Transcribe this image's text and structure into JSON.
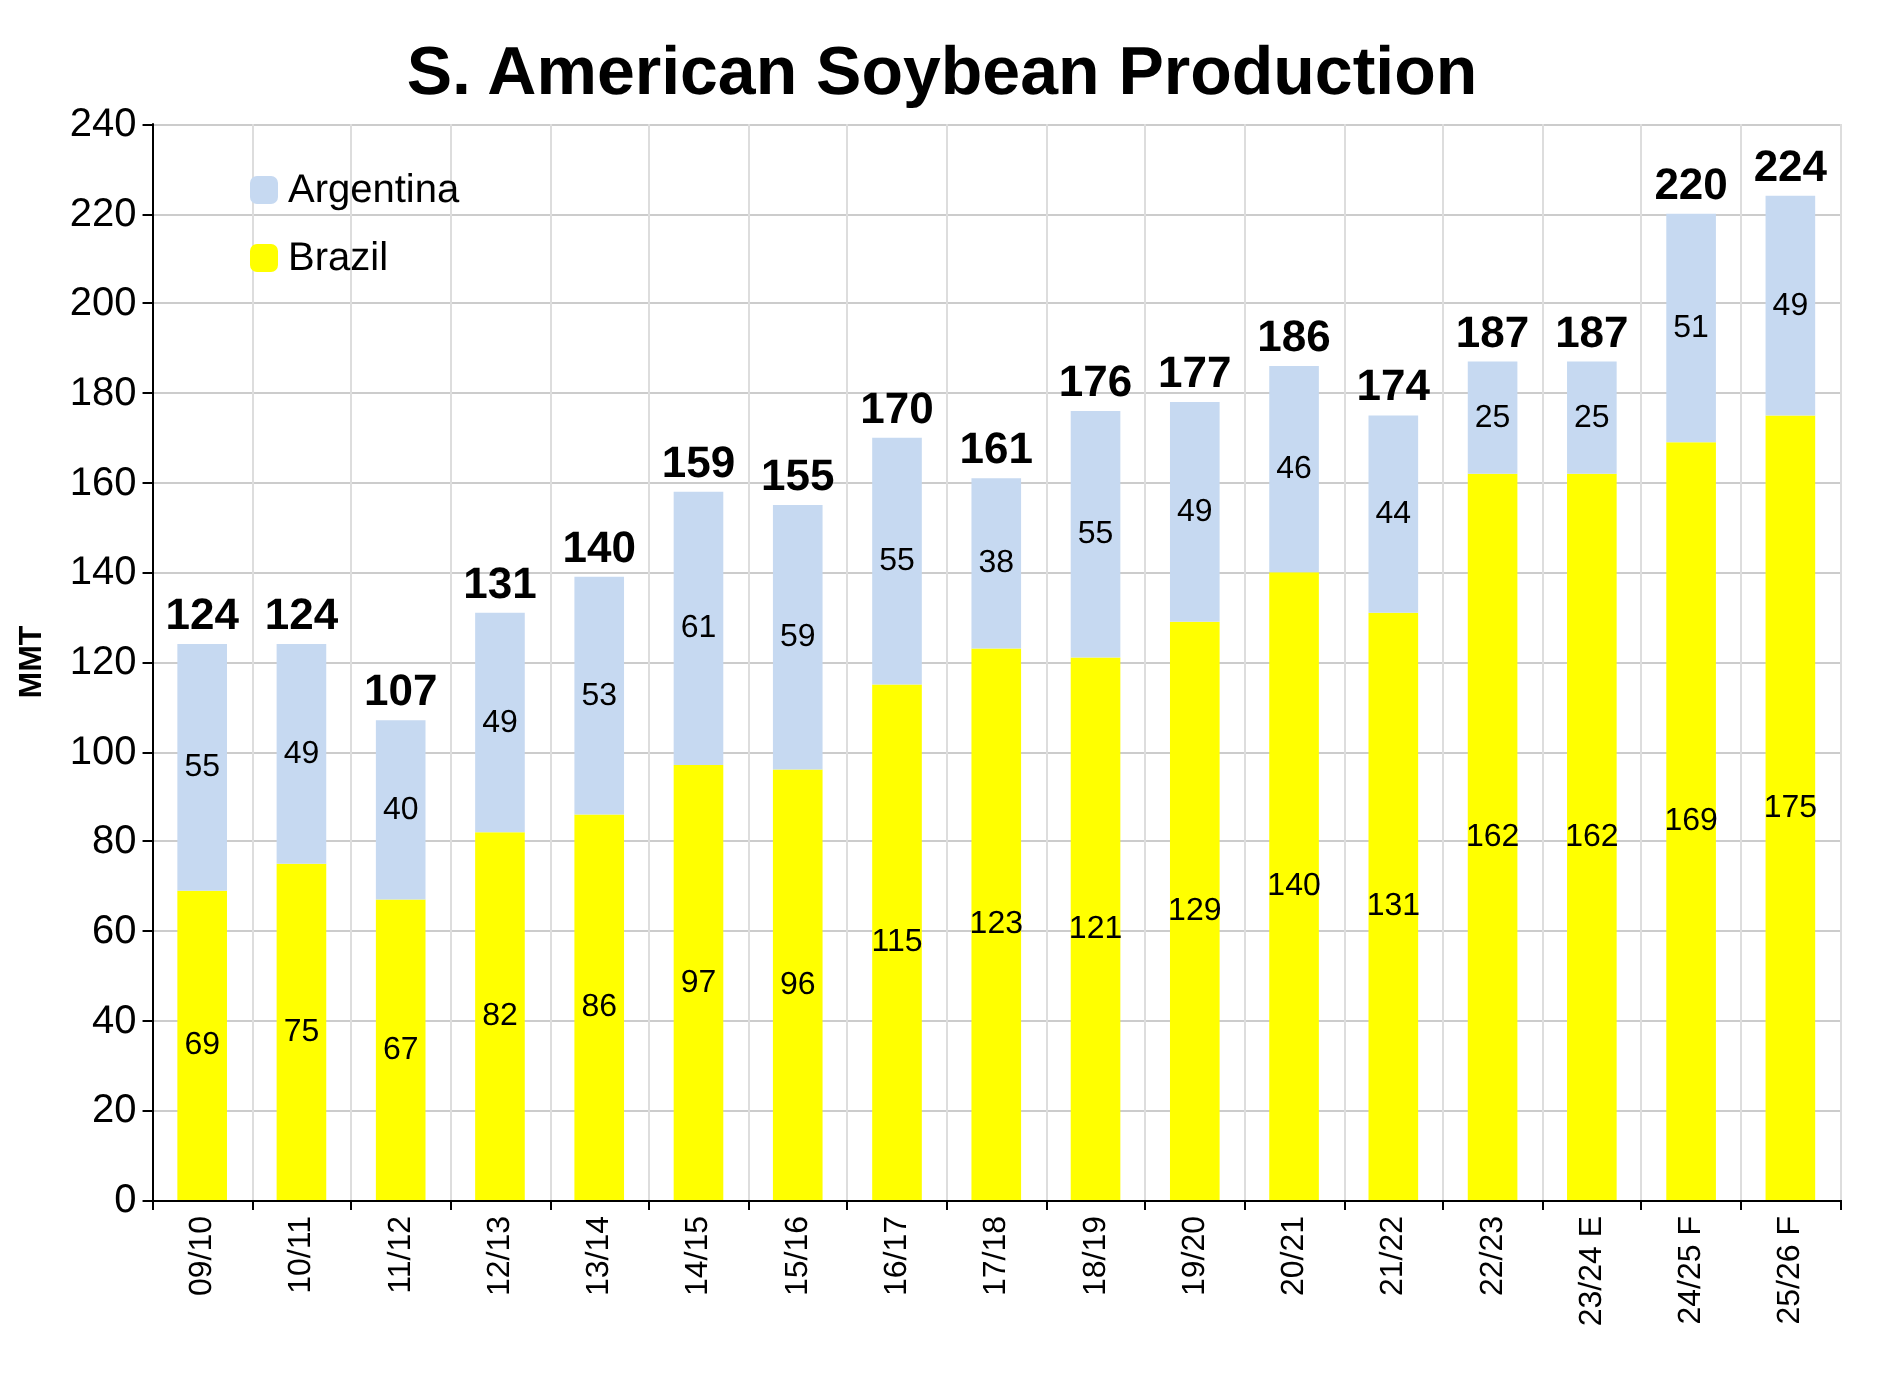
{
  "chart_data": {
    "type": "bar",
    "title": "S. American Soybean Production",
    "ylabel": "MMT",
    "categories": [
      "09/10",
      "10/11",
      "11/12",
      "12/13",
      "13/14",
      "14/15",
      "15/16",
      "16/17",
      "17/18",
      "18/19",
      "19/20",
      "20/21",
      "21/22",
      "22/23",
      "23/24 E",
      "24/25 F",
      "25/26 F"
    ],
    "series": [
      {
        "name": "Brazil",
        "color": "#ffff00",
        "values": [
          69,
          75,
          67,
          82,
          86,
          97,
          96,
          115,
          123,
          121,
          129,
          140,
          131,
          162,
          162,
          169,
          175
        ]
      },
      {
        "name": "Argentina",
        "color": "#c6d9f1",
        "values": [
          55,
          49,
          40,
          49,
          53,
          61,
          59,
          55,
          38,
          55,
          49,
          46,
          44,
          25,
          25,
          51,
          49
        ]
      }
    ],
    "stacked": true,
    "data_labels": true,
    "totals": [
      "124",
      "124",
      "107",
      "131",
      "140",
      "159",
      "155",
      "170",
      "161",
      "176",
      "177",
      "186",
      "174",
      "187",
      "187",
      "220",
      "224"
    ],
    "ylim": [
      0,
      240
    ],
    "yticks": [
      0,
      20,
      40,
      60,
      80,
      100,
      120,
      140,
      160,
      180,
      200,
      220,
      240
    ],
    "grid": true,
    "legend": "top left"
  }
}
